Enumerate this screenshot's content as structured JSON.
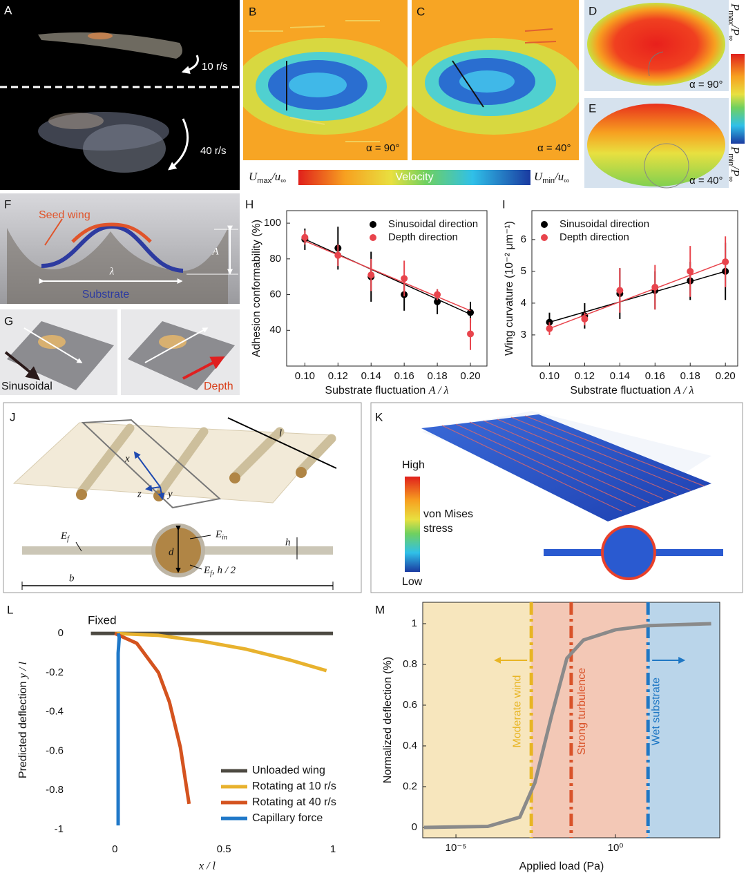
{
  "panels": {
    "A": {
      "label": "A",
      "speeds": [
        "10 r/s",
        "40 r/s"
      ]
    },
    "B": {
      "label": "B",
      "angle": "α = 90°"
    },
    "C": {
      "label": "C",
      "angle": "α = 40°"
    },
    "velocity_scale": {
      "max": [
        "U",
        "max",
        "/u",
        "∞"
      ],
      "title": "Velocity",
      "min": [
        "U",
        "min",
        "/u",
        "∞"
      ]
    },
    "D": {
      "label": "D",
      "angle": "α = 90°"
    },
    "E": {
      "label": "E",
      "angle": "α = 40°"
    },
    "pressure_scale": {
      "max": [
        "P",
        "max",
        "/P",
        "∞"
      ],
      "min": [
        "P",
        "min",
        "/P",
        "∞"
      ]
    },
    "F": {
      "label": "F",
      "seed_wing": "Seed wing",
      "wavelength": "λ",
      "amplitude": "A",
      "substrate": "Substrate"
    },
    "G": {
      "label": "G",
      "sinusoidal": "Sinusoidal",
      "depth": "Depth"
    },
    "J": {
      "label": "J",
      "length": "l",
      "axes": [
        "x",
        "z",
        "y"
      ],
      "film_modulus": [
        "E",
        "f"
      ],
      "core_modulus": [
        "E",
        "in"
      ],
      "diameter": "d",
      "thickness": "h",
      "coating": [
        "E",
        "f",
        ", h / 2"
      ],
      "width": "b"
    },
    "K": {
      "label": "K",
      "high": "High",
      "quantity": [
        "von Mises",
        "stress"
      ],
      "low": "Low"
    }
  },
  "chart_data": [
    {
      "type": "errorbar",
      "label": "H",
      "ylabel": "Adhesion conformability (%)",
      "xlabel": [
        "Substrate fluctuation ",
        "A / λ"
      ],
      "x": [
        0.1,
        0.12,
        0.14,
        0.16,
        0.18,
        0.2
      ],
      "xlim": [
        0.089,
        0.21
      ],
      "xticks": [
        {
          "value": 0.1,
          "label": "0.10"
        },
        0.12,
        0.14,
        0.16,
        0.18,
        {
          "value": 0.2,
          "label": "0.20"
        }
      ],
      "ylim": [
        20,
        107
      ],
      "yticks": [
        40,
        60,
        80,
        100
      ],
      "fit_x": [
        0.1,
        0.2
      ],
      "series": [
        {
          "name": "Sinusoidal direction",
          "color": "#000000",
          "values": [
            91,
            86,
            70,
            60,
            56,
            50
          ],
          "errors": [
            6,
            12,
            14,
            9,
            7,
            6
          ],
          "fit": [
            91,
            49
          ]
        },
        {
          "name": "Depth direction",
          "color": "#e8444c",
          "values": [
            92,
            82,
            71,
            69,
            60,
            38
          ],
          "errors": [
            4,
            6,
            9,
            10,
            3,
            9
          ],
          "fit": [
            90,
            51
          ]
        }
      ]
    },
    {
      "type": "errorbar",
      "label": "I",
      "ylabel": "Wing curvature (10⁻² μm⁻¹)",
      "xlabel": [
        "Substrate fluctuation ",
        "A / λ"
      ],
      "x": [
        0.1,
        0.12,
        0.14,
        0.16,
        0.18,
        0.2
      ],
      "xlim": [
        0.09,
        0.207
      ],
      "xticks": [
        {
          "value": 0.1,
          "label": "0.10"
        },
        0.12,
        0.14,
        0.16,
        0.18,
        {
          "value": 0.2,
          "label": "0.20"
        }
      ],
      "ylim": [
        2.02,
        6.91
      ],
      "yticks": [
        3,
        4,
        5,
        6
      ],
      "fit_x": [
        0.1,
        0.2
      ],
      "series": [
        {
          "name": "Sinusoidal direction",
          "color": "#000000",
          "values": [
            3.4,
            3.6,
            4.3,
            4.4,
            4.7,
            5.0
          ],
          "errors": [
            0.3,
            0.4,
            0.8,
            0.6,
            0.6,
            0.9
          ],
          "fit": [
            3.4,
            5.0
          ]
        },
        {
          "name": "Depth direction",
          "color": "#e8444c",
          "values": [
            3.2,
            3.5,
            4.4,
            4.5,
            5.0,
            5.3
          ],
          "errors": [
            0.2,
            0.2,
            0.7,
            0.7,
            0.8,
            0.8
          ],
          "fit": [
            3.2,
            5.3
          ]
        }
      ]
    },
    {
      "type": "line",
      "label": "L",
      "ylabel": [
        "Predicted deflection  ",
        "y / l"
      ],
      "xlabel": "x / l",
      "annotation": "Fixed",
      "legend": "lower right",
      "xlim": [
        -0.21,
        1.12
      ],
      "xticks": [
        0,
        0.5,
        1
      ],
      "ylim": [
        -1.05,
        0.166
      ],
      "yticks": [
        0,
        -0.2,
        -0.4,
        -0.6,
        -0.8,
        -1
      ],
      "series": [
        {
          "name": "Unloaded wing",
          "color": "#4d4a42",
          "x": [
            -0.11,
            1
          ],
          "values": [
            0,
            0
          ]
        },
        {
          "name": "Rotating at 10 r/s",
          "color": "#e8b22e",
          "x": [
            0,
            0.2,
            0.4,
            0.6,
            0.8,
            0.97
          ],
          "values": [
            0,
            -0.01,
            -0.04,
            -0.08,
            -0.135,
            -0.19
          ]
        },
        {
          "name": "Rotating at 40 r/s",
          "color": "#d4531f",
          "x": [
            0,
            0.1,
            0.2,
            0.25,
            0.3,
            0.34
          ],
          "values": [
            0,
            -0.05,
            -0.2,
            -0.35,
            -0.58,
            -0.87
          ]
        },
        {
          "name": "Capillary force",
          "color": "#1f78c8",
          "x": [
            0.015,
            0.02,
            0.015,
            0.015
          ],
          "values": [
            0,
            -0.02,
            -0.1,
            -0.98
          ]
        }
      ]
    },
    {
      "type": "line",
      "label": "M",
      "xscale": "log",
      "ylabel": "Normalized deflection (%)",
      "xlabel": "Applied load (Pa)",
      "xlim": [
        9.1e-07,
        1860
      ],
      "xticks": [
        {
          "value": 1e-05,
          "label": "10⁻⁵"
        },
        {
          "value": 1,
          "label": "10⁰"
        }
      ],
      "ylim": [
        -0.051,
        1.105
      ],
      "yticks": [
        0,
        0.2,
        0.4,
        0.6,
        0.8,
        1
      ],
      "zones": [
        {
          "name": "Moderate wind",
          "threshold": 0.0023,
          "color": "#e8b524",
          "fill": "#f7e6bd"
        },
        {
          "name": "Strong turbulence",
          "threshold": 0.041,
          "color": "#d9532a",
          "fill": "#f3c8b6"
        },
        {
          "name": "Wet substrate",
          "threshold": 10.5,
          "color": "#1f77c4",
          "fill": "#bad5ea"
        }
      ],
      "series": [
        {
          "color": "#8a8a8a",
          "x": [
            1e-06,
            0.0001,
            0.001,
            0.003,
            0.01,
            0.03,
            0.1,
            1,
            10,
            1000
          ],
          "values": [
            0,
            0.005,
            0.05,
            0.22,
            0.55,
            0.83,
            0.92,
            0.97,
            0.99,
            1
          ]
        }
      ]
    }
  ]
}
